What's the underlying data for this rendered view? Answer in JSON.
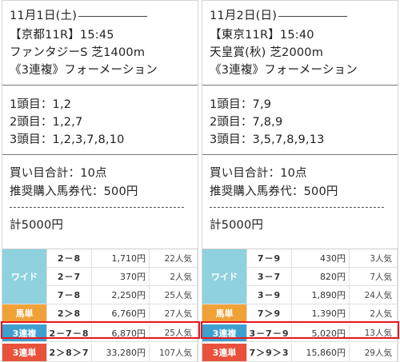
{
  "races": [
    {
      "date": "11月1日(土)",
      "race": "【京都11R】15:45",
      "name": "ファンタジーS 芝1400m",
      "bet_type": "《3連複》フォーメーション",
      "first": "1頭目：1,2",
      "second": "2頭目：1,2,7",
      "third": "3頭目：1,2,3,7,8,10",
      "total": "買い目合計：10点",
      "recommended": "推奨購入馬券代：500円",
      "dashes": "------------------------------",
      "sum": "計5000円",
      "results": {
        "wide": {
          "label": "ワイド",
          "rows": [
            {
              "combo": "2－8",
              "pay": "1,710円",
              "pop": "22人気"
            },
            {
              "combo": "2－7",
              "pay": "370円",
              "pop": "2人気"
            },
            {
              "combo": "7－8",
              "pay": "2,250円",
              "pop": "25人気"
            }
          ]
        },
        "umatan": {
          "label": "馬単",
          "combo": "2＞8",
          "pay": "6,760円",
          "pop": "27人気"
        },
        "sanfuku": {
          "label": "3連複",
          "combo": "2－7－8",
          "pay": "6,870円",
          "pop": "25人気"
        },
        "santan": {
          "label": "3連単",
          "combo": "2＞8＞7",
          "pay": "33,280円",
          "pop": "107人気"
        }
      }
    },
    {
      "date": "11月2日(日)",
      "race": "【東京11R】15:40",
      "name": "天皇賞(秋) 芝2000m",
      "bet_type": "《3連複》フォーメーション",
      "first": "1頭目：7,9",
      "second": "2頭目：7,8,9",
      "third": "3頭目：3,5,7,8,9,13",
      "total": "買い目合計：10点",
      "recommended": "推奨購入馬券代：500円",
      "dashes": "------------------------------",
      "sum": "計5000円",
      "results": {
        "wide": {
          "label": "ワイド",
          "rows": [
            {
              "combo": "7－9",
              "pay": "430円",
              "pop": "3人気"
            },
            {
              "combo": "3－7",
              "pay": "820円",
              "pop": "7人気"
            },
            {
              "combo": "3－9",
              "pay": "1,890円",
              "pop": "24人気"
            }
          ]
        },
        "umatan": {
          "label": "馬単",
          "combo": "7＞9",
          "pay": "1,390円",
          "pop": "2人気"
        },
        "sanfuku": {
          "label": "3連複",
          "combo": "3－7－9",
          "pay": "5,020円",
          "pop": "13人気"
        },
        "santan": {
          "label": "3連単",
          "combo": "7＞9＞3",
          "pay": "15,860円",
          "pop": "29人気"
        }
      }
    }
  ],
  "colors": {
    "wide": "#8fd1df",
    "umatan": "#f0a238",
    "sanfuku": "#3f9fcf",
    "santan": "#e9513b",
    "highlight": "#e8161e"
  }
}
